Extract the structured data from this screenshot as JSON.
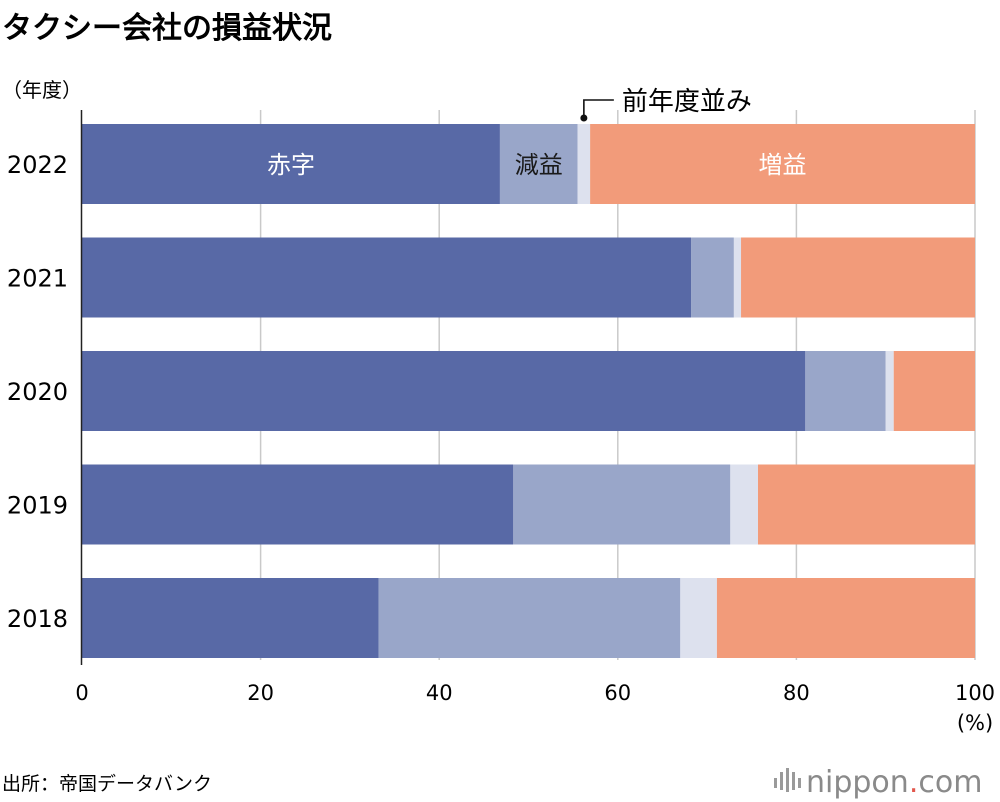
{
  "chart_data": {
    "type": "bar",
    "orientation": "horizontal",
    "stacked": true,
    "title": "タクシー会社の損益状況",
    "ylabel": "（年度）",
    "xlabel": "(%)",
    "xlim": [
      0,
      100
    ],
    "xticks": [
      0,
      20,
      40,
      60,
      80,
      100
    ],
    "grid": true,
    "categories": [
      "2022",
      "2021",
      "2020",
      "2019",
      "2018"
    ],
    "series": [
      {
        "name": "赤字",
        "color": "#5869a6",
        "values": [
          46.8,
          68.2,
          81.0,
          48.3,
          33.2
        ]
      },
      {
        "name": "減益",
        "color": "#99a6c9",
        "values": [
          8.7,
          4.8,
          9.0,
          24.3,
          33.8
        ]
      },
      {
        "name": "前年度並み",
        "color": "#dde1ee",
        "values": [
          1.4,
          0.8,
          0.9,
          3.1,
          4.1
        ]
      },
      {
        "name": "増益",
        "color": "#f29b7a",
        "values": [
          43.1,
          26.2,
          9.1,
          24.3,
          28.9
        ]
      }
    ],
    "inline_labels": {
      "category": "2022",
      "labels": [
        "赤字",
        "減益",
        "増益"
      ]
    },
    "callout": {
      "text": "前年度並み",
      "series": "前年度並み",
      "category": "2022"
    }
  },
  "source": "出所：帝国データバンク",
  "logo": {
    "name": "nippon",
    "dot": ".",
    "suffix": "com"
  }
}
